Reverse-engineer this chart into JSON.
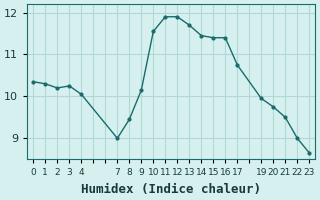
{
  "x": [
    0,
    1,
    2,
    3,
    4,
    7,
    8,
    9,
    10,
    11,
    12,
    13,
    14,
    15,
    16,
    17,
    19,
    20,
    21,
    22,
    23
  ],
  "y": [
    10.35,
    10.3,
    10.2,
    10.25,
    10.05,
    9.0,
    9.45,
    10.15,
    11.55,
    11.9,
    11.9,
    11.7,
    11.45,
    11.4,
    11.4,
    10.75,
    9.95,
    9.75,
    9.5,
    9.0,
    8.65
  ],
  "bg_color": "#d6f0ef",
  "grid_color": "#b0d8d5",
  "line_color": "#1a6b6b",
  "marker_color": "#1a6b6b",
  "xlabel": "Humidex (Indice chaleur)",
  "xlabel_fontsize": 9,
  "ylim": [
    8.5,
    12.2
  ],
  "xlim": [
    -0.5,
    23.5
  ],
  "yticks": [
    9,
    10,
    11,
    12
  ],
  "xtick_labels": [
    "0",
    "1",
    "2",
    "3",
    "4",
    "",
    "",
    "7",
    "8",
    "9",
    "10",
    "11",
    "12",
    "13",
    "14",
    "15",
    "16",
    "17",
    "",
    "19",
    "20",
    "21",
    "22",
    "23"
  ],
  "xtick_positions": [
    0,
    1,
    2,
    3,
    4,
    5,
    6,
    7,
    8,
    9,
    10,
    11,
    12,
    13,
    14,
    15,
    16,
    17,
    18,
    19,
    20,
    21,
    22,
    23
  ]
}
